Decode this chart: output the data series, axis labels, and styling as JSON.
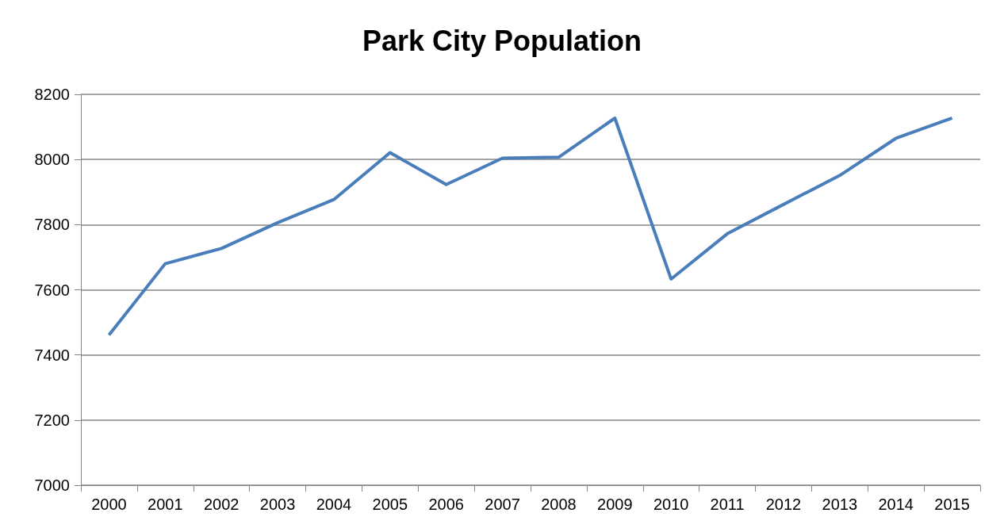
{
  "chart_data": {
    "type": "line",
    "title": "Park City Population",
    "categories": [
      "2000",
      "2001",
      "2002",
      "2003",
      "2004",
      "2005",
      "2006",
      "2007",
      "2008",
      "2009",
      "2010",
      "2011",
      "2012",
      "2013",
      "2014",
      "2015"
    ],
    "series": [
      {
        "color": "#4a7ebb",
        "values": [
          7461,
          7680,
          7727,
          7806,
          7877,
          8021,
          7923,
          8004,
          8007,
          8127,
          7633,
          7772,
          7862,
          7951,
          8065,
          8127
        ]
      }
    ],
    "ylim": [
      7000,
      8200
    ],
    "yticks": [
      7000,
      7200,
      7400,
      7600,
      7800,
      8000,
      8200
    ],
    "grid": "y",
    "marker": "none",
    "line_style": "solid"
  }
}
